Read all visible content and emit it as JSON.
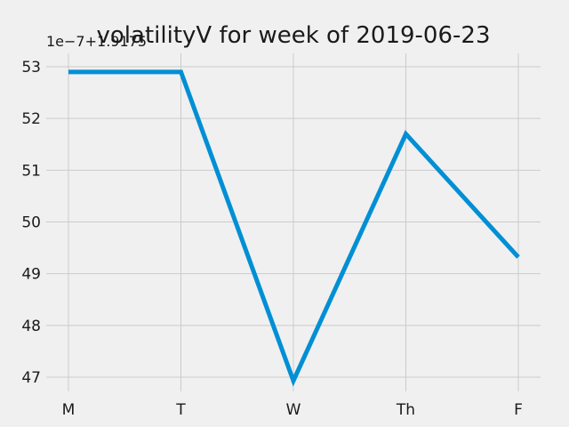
{
  "chart_data": {
    "type": "line",
    "title": "volatilityV for week of 2019-06-23",
    "offset_label": "1e−7+1.9175",
    "categories": [
      "M",
      "T",
      "W",
      "Th",
      "F"
    ],
    "series": [
      {
        "values": [
          52.9,
          52.9,
          46.93,
          51.7,
          49.32
        ]
      }
    ],
    "ylim": [
      46.85,
      53.1
    ],
    "yticks": [
      47,
      48,
      49,
      50,
      51,
      52,
      53
    ],
    "grid": true,
    "colors": {
      "line": "#008fd5",
      "grid": "#cbcbcb",
      "background": "#f0f0f0"
    }
  }
}
